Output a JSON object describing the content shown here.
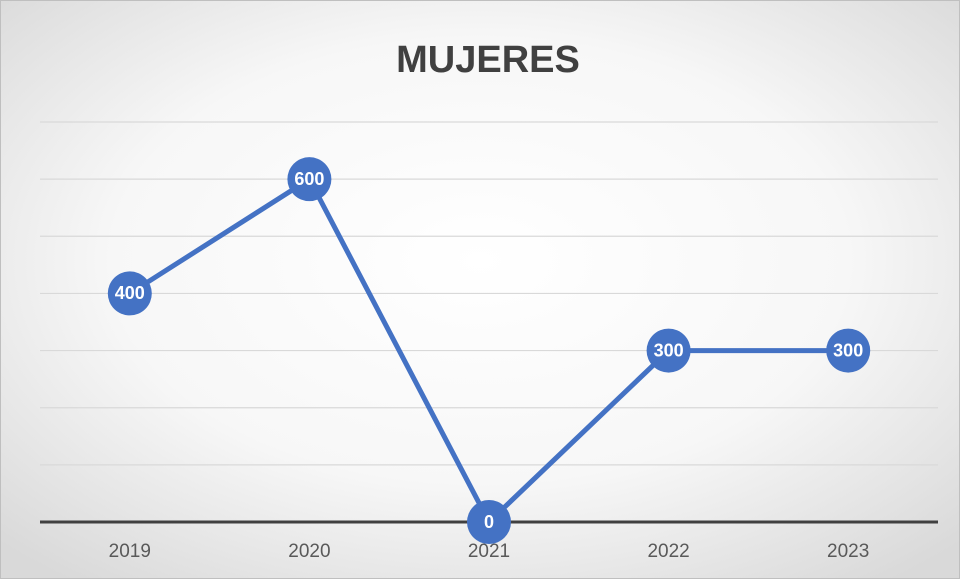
{
  "chart_data": {
    "type": "line",
    "title": "MUJERES",
    "categories": [
      "2019",
      "2020",
      "2021",
      "2022",
      "2023"
    ],
    "series": [
      {
        "name": "MUJERES",
        "color": "#4472c4",
        "values": [
          400,
          600,
          0,
          300,
          300
        ]
      }
    ],
    "ylim": [
      0,
      700
    ],
    "yticks": [
      0,
      100,
      200,
      300,
      400,
      500,
      600,
      700
    ],
    "grid": true
  }
}
